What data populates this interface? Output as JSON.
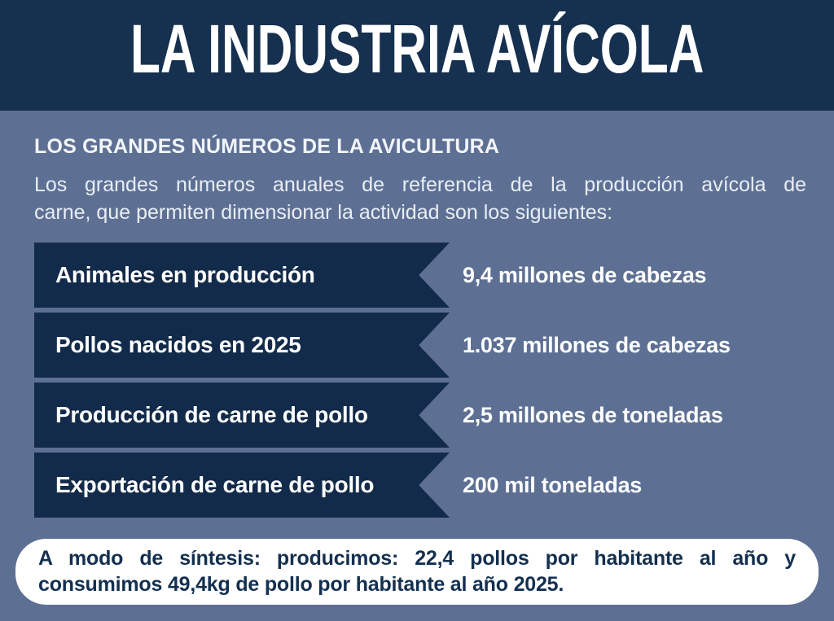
{
  "colors": {
    "background_slate": "#5d7094",
    "banner_navy": "#16304f",
    "ribbon_navy": "#132b4a",
    "text_light": "#e9eef5",
    "summary_box_bg": "#ffffff",
    "summary_text_navy": "#14304f"
  },
  "header": {
    "title": "LA INDUSTRIA AVÍCOLA"
  },
  "intro": {
    "heading": "LOS GRANDES NÚMEROS DE LA AVICULTURA",
    "paragraph_lines": [
      "Los grandes números anuales de referencia de la producción avícola de",
      "carne, que permiten dimensionar la actividad son los siguientes:"
    ]
  },
  "stats": {
    "rows": [
      {
        "label": "Animales en producción",
        "value": "9,4 millones de cabezas"
      },
      {
        "label": "Pollos nacidos en 2025",
        "value": "1.037 millones de cabezas"
      },
      {
        "label": "Producción de carne de pollo",
        "value": "2,5 millones de toneladas"
      },
      {
        "label": "Exportación de carne de pollo",
        "value": "200 mil toneladas"
      }
    ]
  },
  "summary": {
    "lines": [
      "A modo de síntesis: producimos: 22,4 pollos por habitante al año y",
      "consumimos 49,4kg de pollo por habitante al año 2025."
    ]
  }
}
